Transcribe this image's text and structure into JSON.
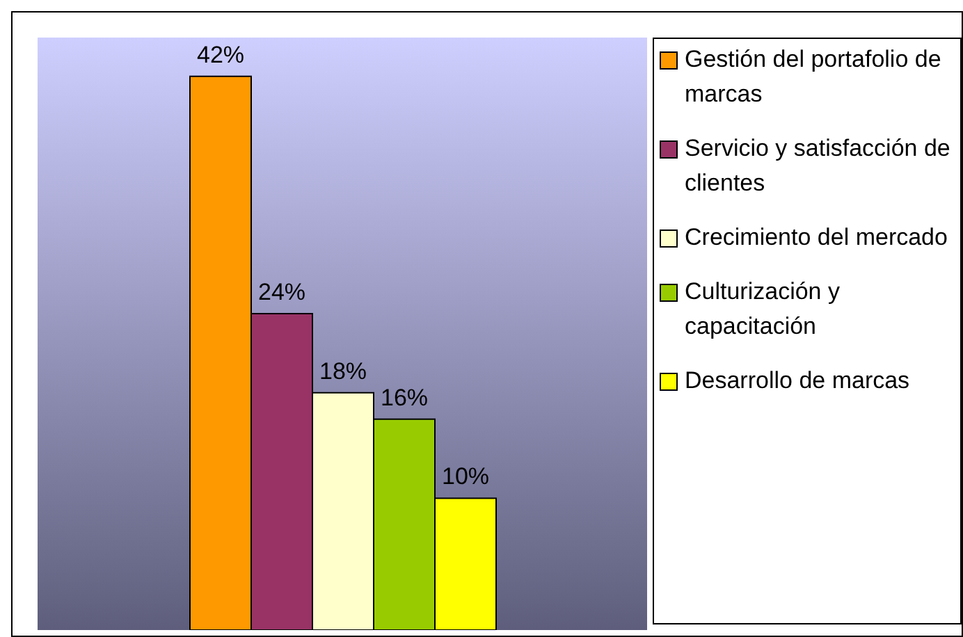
{
  "chart_data": {
    "type": "bar",
    "categories": [
      null
    ],
    "series": [
      {
        "name": "Gestión del portafolio de marcas",
        "color": "#ff9900",
        "values": [
          42
        ],
        "value_labels": [
          "42%"
        ]
      },
      {
        "name": "Servicio y satisfacción de clientes",
        "color": "#993366",
        "values": [
          24
        ],
        "value_labels": [
          "24%"
        ]
      },
      {
        "name": "Crecimiento del mercado",
        "color": "#ffffcc",
        "values": [
          18
        ],
        "value_labels": [
          "18%"
        ]
      },
      {
        "name": "Culturización y capacitación",
        "color": "#99cc00",
        "values": [
          16
        ],
        "value_labels": [
          "16%"
        ]
      },
      {
        "name": "Desarrollo de marcas",
        "color": "#ffff00",
        "values": [
          10
        ],
        "value_labels": [
          "10%"
        ]
      }
    ],
    "legend": "right"
  }
}
